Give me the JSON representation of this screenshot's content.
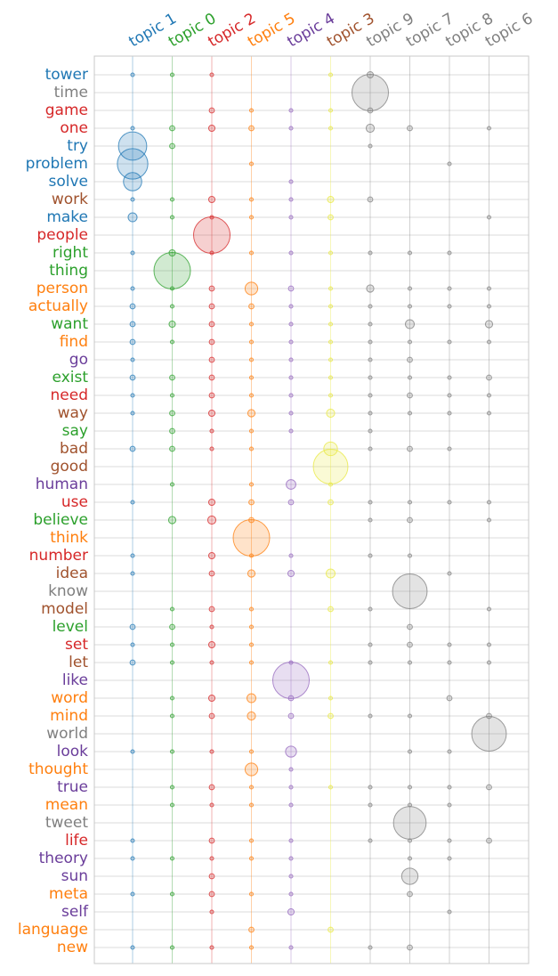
{
  "chart_data": {
    "type": "scatter",
    "subtype": "bubble-matrix",
    "grid": true,
    "topics": [
      {
        "label": "topic 1",
        "color": "#1f77b4"
      },
      {
        "label": "topic 0",
        "color": "#2ca02c"
      },
      {
        "label": "topic 2",
        "color": "#d62728"
      },
      {
        "label": "topic 5",
        "color": "#ff7f0e"
      },
      {
        "label": "topic 4",
        "color": "#6a3d9a"
      },
      {
        "label": "topic 3",
        "color": "#a0522d"
      },
      {
        "label": "topic 9",
        "color": "#7f7f7f"
      },
      {
        "label": "topic 7",
        "color": "#7f7f7f"
      },
      {
        "label": "topic 8",
        "color": "#7f7f7f"
      },
      {
        "label": "topic 6",
        "color": "#7f7f7f"
      }
    ],
    "column_colors": [
      "#1f77b4",
      "#2ca02c",
      "#d62728",
      "#ff7f0e",
      "#9467bd",
      "#e8e840",
      "#7f7f7f",
      "#7f7f7f",
      "#7f7f7f",
      "#7f7f7f"
    ],
    "words": [
      {
        "word": "tower",
        "color": "#1f77b4",
        "values": [
          1,
          1,
          1,
          0,
          0,
          1,
          3,
          0,
          0,
          0
        ]
      },
      {
        "word": "time",
        "color": "#7f7f7f",
        "values": [
          0,
          0,
          0,
          0,
          0,
          0,
          100,
          0,
          0,
          0
        ]
      },
      {
        "word": "game",
        "color": "#d62728",
        "values": [
          0,
          0,
          2,
          1,
          1,
          1,
          2,
          0,
          0,
          0
        ]
      },
      {
        "word": "one",
        "color": "#d62728",
        "values": [
          1,
          2,
          3,
          2,
          1,
          1,
          5,
          2,
          0,
          1
        ]
      },
      {
        "word": "try",
        "color": "#1f77b4",
        "values": [
          60,
          2,
          0,
          0,
          0,
          0,
          1,
          0,
          0,
          0
        ]
      },
      {
        "word": "problem",
        "color": "#1f77b4",
        "values": [
          70,
          0,
          0,
          1,
          0,
          0,
          0,
          0,
          1,
          0
        ]
      },
      {
        "word": "solve",
        "color": "#1f77b4",
        "values": [
          25,
          0,
          0,
          0,
          1,
          0,
          0,
          0,
          0,
          0
        ]
      },
      {
        "word": "work",
        "color": "#a0522d",
        "values": [
          1,
          1,
          3,
          1,
          1,
          3,
          2,
          0,
          0,
          0
        ]
      },
      {
        "word": "make",
        "color": "#1f77b4",
        "values": [
          6,
          1,
          1,
          1,
          1,
          2,
          0,
          0,
          0,
          1
        ]
      },
      {
        "word": "people",
        "color": "#d62728",
        "values": [
          0,
          0,
          100,
          0,
          0,
          0,
          0,
          0,
          0,
          0
        ]
      },
      {
        "word": "right",
        "color": "#2ca02c",
        "values": [
          1,
          3,
          1,
          1,
          1,
          1,
          1,
          1,
          1,
          0
        ]
      },
      {
        "word": "thing",
        "color": "#2ca02c",
        "values": [
          0,
          100,
          0,
          0,
          0,
          0,
          0,
          0,
          0,
          0
        ]
      },
      {
        "word": "person",
        "color": "#ff7f0e",
        "values": [
          1,
          1,
          2,
          12,
          2,
          1,
          4,
          1,
          1,
          1
        ]
      },
      {
        "word": "actually",
        "color": "#ff7f0e",
        "values": [
          2,
          1,
          2,
          2,
          1,
          1,
          1,
          1,
          1,
          1
        ]
      },
      {
        "word": "want",
        "color": "#2ca02c",
        "values": [
          2,
          3,
          2,
          1,
          1,
          1,
          1,
          6,
          0,
          4
        ]
      },
      {
        "word": "find",
        "color": "#ff7f0e",
        "values": [
          2,
          1,
          2,
          1,
          1,
          1,
          1,
          1,
          1,
          1
        ]
      },
      {
        "word": "go",
        "color": "#6a3d9a",
        "values": [
          1,
          0,
          2,
          1,
          1,
          1,
          1,
          2,
          0,
          0
        ]
      },
      {
        "word": "exist",
        "color": "#2ca02c",
        "values": [
          2,
          2,
          2,
          1,
          1,
          1,
          1,
          1,
          1,
          2
        ]
      },
      {
        "word": "need",
        "color": "#d62728",
        "values": [
          1,
          1,
          2,
          1,
          1,
          1,
          1,
          2,
          1,
          1
        ]
      },
      {
        "word": "way",
        "color": "#a0522d",
        "values": [
          1,
          2,
          3,
          4,
          1,
          5,
          1,
          1,
          1,
          1
        ]
      },
      {
        "word": "say",
        "color": "#2ca02c",
        "values": [
          0,
          2,
          1,
          1,
          1,
          0,
          1,
          0,
          0,
          0
        ]
      },
      {
        "word": "bad",
        "color": "#a0522d",
        "values": [
          2,
          2,
          1,
          1,
          0,
          14,
          1,
          2,
          1,
          0
        ]
      },
      {
        "word": "good",
        "color": "#a0522d",
        "values": [
          0,
          0,
          0,
          0,
          0,
          90,
          0,
          0,
          0,
          0
        ]
      },
      {
        "word": "human",
        "color": "#6a3d9a",
        "values": [
          0,
          1,
          0,
          1,
          7,
          1,
          0,
          0,
          0,
          0
        ]
      },
      {
        "word": "use",
        "color": "#d62728",
        "values": [
          1,
          0,
          3,
          2,
          2,
          2,
          1,
          1,
          1,
          1
        ]
      },
      {
        "word": "believe",
        "color": "#2ca02c",
        "values": [
          0,
          4,
          5,
          2,
          0,
          0,
          1,
          2,
          0,
          1
        ]
      },
      {
        "word": "think",
        "color": "#ff7f0e",
        "values": [
          0,
          0,
          0,
          100,
          0,
          0,
          0,
          0,
          0,
          0
        ]
      },
      {
        "word": "number",
        "color": "#d62728",
        "values": [
          1,
          0,
          3,
          1,
          1,
          0,
          1,
          1,
          0,
          0
        ]
      },
      {
        "word": "idea",
        "color": "#a0522d",
        "values": [
          1,
          0,
          2,
          4,
          3,
          6,
          0,
          0,
          1,
          0
        ]
      },
      {
        "word": "know",
        "color": "#7f7f7f",
        "values": [
          0,
          0,
          0,
          0,
          0,
          0,
          0,
          90,
          0,
          0
        ]
      },
      {
        "word": "model",
        "color": "#a0522d",
        "values": [
          0,
          1,
          2,
          1,
          0,
          2,
          1,
          0,
          0,
          1
        ]
      },
      {
        "word": "level",
        "color": "#2ca02c",
        "values": [
          2,
          2,
          1,
          1,
          0,
          0,
          0,
          2,
          0,
          0
        ]
      },
      {
        "word": "set",
        "color": "#d62728",
        "values": [
          1,
          1,
          3,
          1,
          0,
          0,
          1,
          2,
          1,
          1
        ]
      },
      {
        "word": "let",
        "color": "#a0522d",
        "values": [
          2,
          1,
          1,
          1,
          1,
          1,
          1,
          1,
          1,
          1
        ]
      },
      {
        "word": "like",
        "color": "#6a3d9a",
        "values": [
          0,
          0,
          0,
          0,
          100,
          0,
          0,
          0,
          0,
          0
        ]
      },
      {
        "word": "word",
        "color": "#ff7f0e",
        "values": [
          0,
          1,
          3,
          6,
          2,
          1,
          0,
          0,
          2,
          0
        ]
      },
      {
        "word": "mind",
        "color": "#ff7f0e",
        "values": [
          0,
          1,
          2,
          5,
          2,
          2,
          1,
          1,
          0,
          2
        ]
      },
      {
        "word": "world",
        "color": "#7f7f7f",
        "values": [
          0,
          0,
          0,
          0,
          0,
          0,
          0,
          0,
          0,
          90
        ]
      },
      {
        "word": "look",
        "color": "#6a3d9a",
        "values": [
          1,
          1,
          1,
          1,
          9,
          0,
          0,
          1,
          1,
          0
        ]
      },
      {
        "word": "thought",
        "color": "#ff7f0e",
        "values": [
          0,
          0,
          0,
          12,
          1,
          0,
          0,
          0,
          0,
          0
        ]
      },
      {
        "word": "true",
        "color": "#6a3d9a",
        "values": [
          0,
          1,
          2,
          1,
          1,
          1,
          1,
          1,
          1,
          2
        ]
      },
      {
        "word": "mean",
        "color": "#ff7f0e",
        "values": [
          0,
          1,
          1,
          1,
          1,
          0,
          1,
          1,
          1,
          0
        ]
      },
      {
        "word": "tweet",
        "color": "#7f7f7f",
        "values": [
          0,
          0,
          0,
          0,
          0,
          0,
          0,
          80,
          0,
          0
        ]
      },
      {
        "word": "life",
        "color": "#d62728",
        "values": [
          1,
          0,
          2,
          1,
          1,
          0,
          1,
          1,
          1,
          2
        ]
      },
      {
        "word": "theory",
        "color": "#6a3d9a",
        "values": [
          1,
          1,
          1,
          1,
          1,
          0,
          0,
          1,
          1,
          0
        ]
      },
      {
        "word": "sun",
        "color": "#6a3d9a",
        "values": [
          0,
          0,
          2,
          0,
          1,
          0,
          0,
          20,
          0,
          0
        ]
      },
      {
        "word": "meta",
        "color": "#ff7f0e",
        "values": [
          1,
          1,
          2,
          1,
          1,
          0,
          0,
          2,
          0,
          0
        ]
      },
      {
        "word": "self",
        "color": "#6a3d9a",
        "values": [
          0,
          0,
          1,
          0,
          3,
          0,
          0,
          0,
          1,
          0
        ]
      },
      {
        "word": "language",
        "color": "#ff7f0e",
        "values": [
          0,
          0,
          0,
          2,
          0,
          2,
          0,
          0,
          0,
          0
        ]
      },
      {
        "word": "new",
        "color": "#ff7f0e",
        "values": [
          1,
          1,
          1,
          1,
          1,
          0,
          1,
          2,
          0,
          0
        ]
      }
    ]
  }
}
